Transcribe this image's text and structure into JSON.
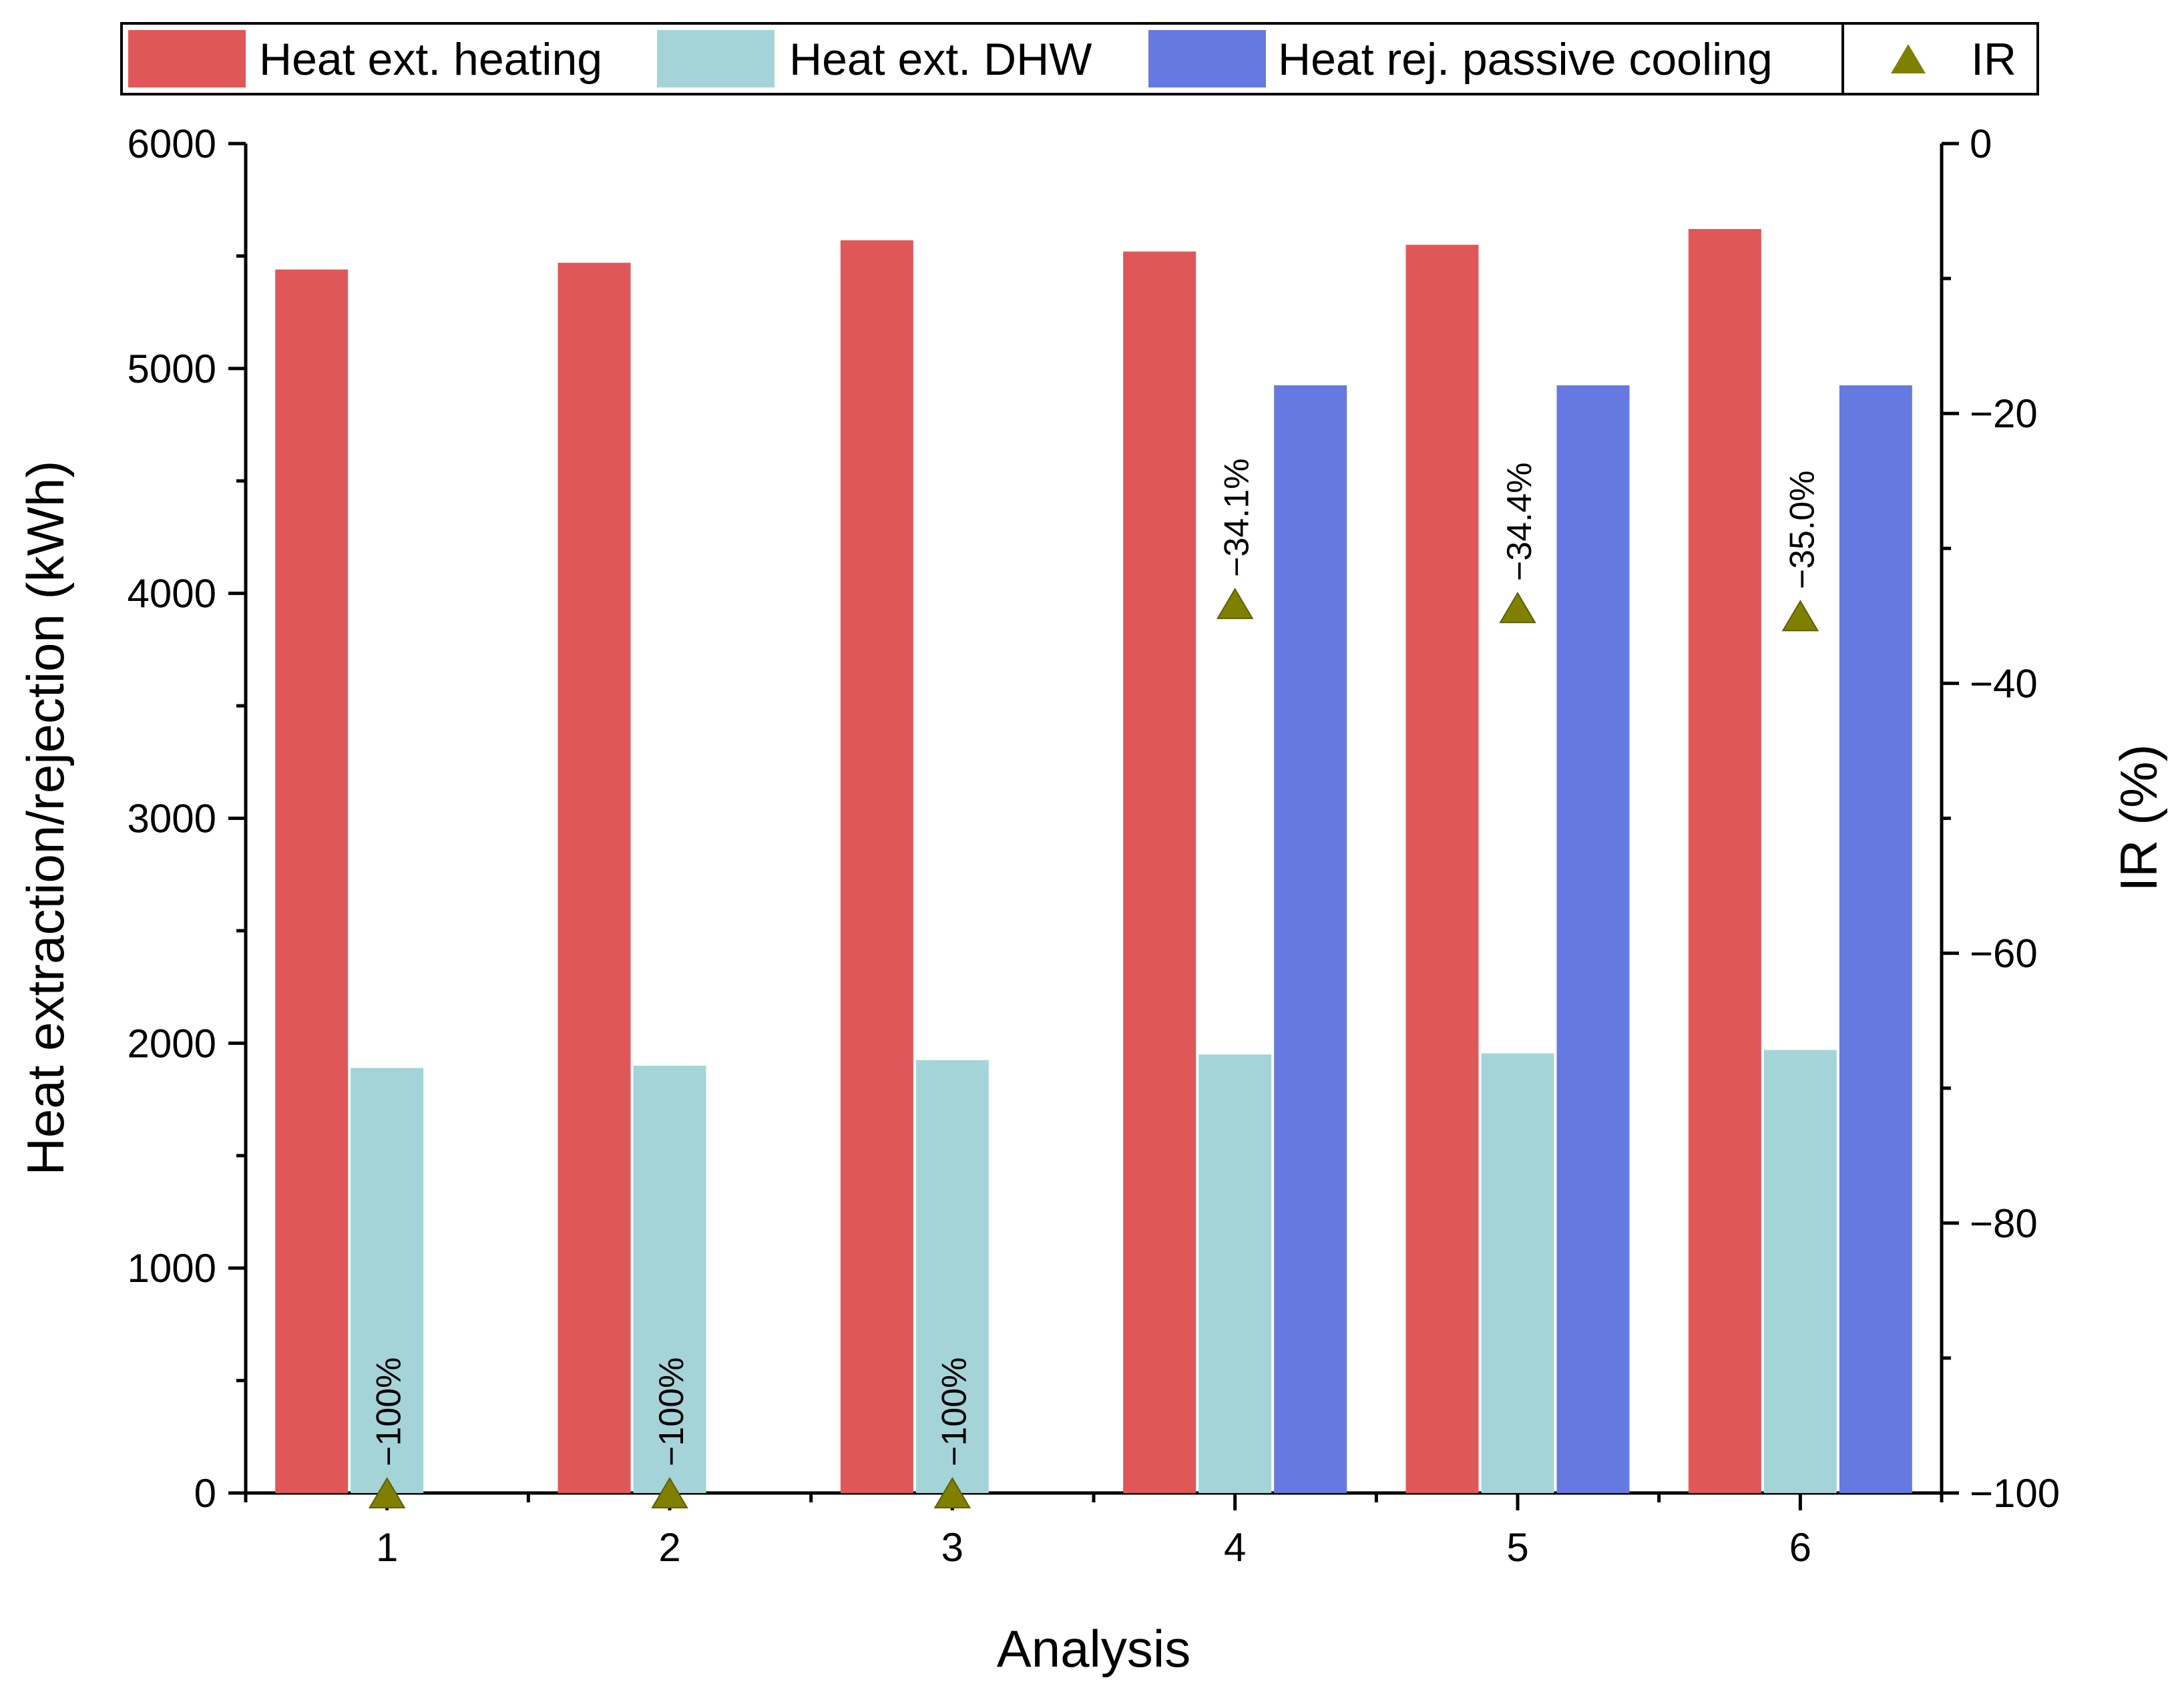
{
  "chart_data": {
    "type": "bar",
    "title": "",
    "xlabel": "Analysis",
    "ylabel": "Heat extraction/rejection (kWh)",
    "y2label": "IR (%)",
    "categories": [
      "1",
      "2",
      "3",
      "4",
      "5",
      "6"
    ],
    "ylim": [
      0,
      6000
    ],
    "yticks": [
      0,
      1000,
      2000,
      3000,
      4000,
      5000,
      6000
    ],
    "y2lim": [
      -100,
      0
    ],
    "y2ticks": [
      -100,
      -80,
      -60,
      -40,
      -20,
      0
    ],
    "y2tick_labels": [
      "−100",
      "−80",
      "−60",
      "−40",
      "−20",
      "0"
    ],
    "series": [
      {
        "name": "Heat ext. heating",
        "axis": "left",
        "color": "#e0575a",
        "values": [
          5440,
          5470,
          5570,
          5520,
          5550,
          5620
        ]
      },
      {
        "name": "Heat ext. DHW",
        "axis": "left",
        "color": "#a5d4d8",
        "values": [
          1890,
          1900,
          1925,
          1950,
          1955,
          1970
        ]
      },
      {
        "name": "Heat rej. passive cooling",
        "axis": "left",
        "color": "#6679e0",
        "values": [
          0,
          0,
          0,
          4925,
          4925,
          4925
        ]
      },
      {
        "name": "IR",
        "axis": "right",
        "type": "scatter",
        "marker": "triangle",
        "color": "#808000",
        "values": [
          -100,
          -100,
          -100,
          -34.1,
          -34.4,
          -35.0
        ],
        "labels": [
          "−100%",
          "−100%",
          "−100%",
          "−34.1%",
          "−34.4%",
          "−35.0%"
        ]
      }
    ],
    "legend": {
      "position": "top",
      "entries": [
        "Heat ext. heating",
        "Heat ext. DHW",
        "Heat rej. passive cooling",
        "IR"
      ]
    },
    "grid": false
  }
}
